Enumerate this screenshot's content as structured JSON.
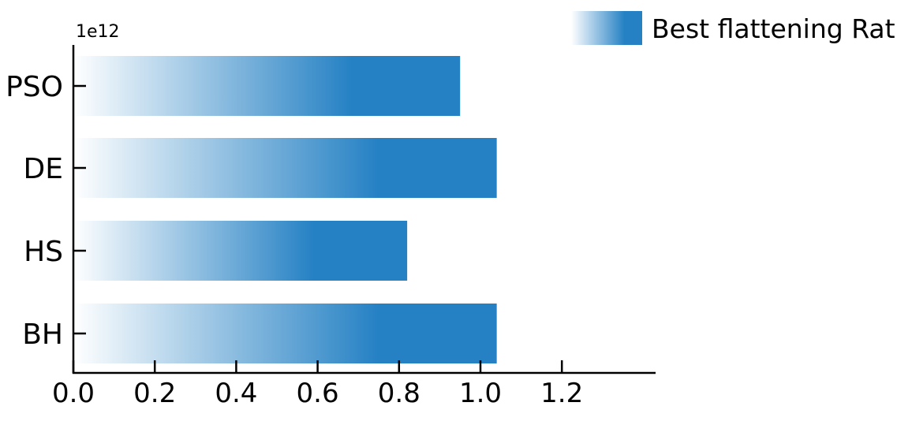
{
  "chart_data": {
    "type": "bar",
    "orientation": "horizontal",
    "categories": [
      "PSO",
      "DE",
      "HS",
      "BH"
    ],
    "series": [
      {
        "name": "Best flattening Ratio",
        "values": [
          0.95,
          1.04,
          0.82,
          1.04
        ]
      }
    ],
    "x_offset_label": "1e12",
    "xlim": [
      0.0,
      1.2
    ],
    "xticks": [
      "0.0",
      "0.2",
      "0.4",
      "0.6",
      "0.8",
      "1.0",
      "1.2"
    ],
    "xtick_values": [
      0.0,
      0.2,
      0.4,
      0.6,
      0.8,
      1.0,
      1.2
    ],
    "grid": false,
    "legend_position": "top-right",
    "bar_color": "#2581c4",
    "gradient_start_color": "#ffffff"
  }
}
